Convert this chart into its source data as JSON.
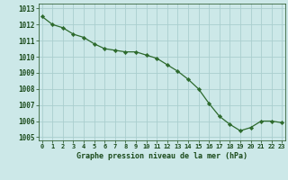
{
  "x": [
    0,
    1,
    2,
    3,
    4,
    5,
    6,
    7,
    8,
    9,
    10,
    11,
    12,
    13,
    14,
    15,
    16,
    17,
    18,
    19,
    20,
    21,
    22,
    23
  ],
  "y": [
    1012.5,
    1012.0,
    1011.8,
    1011.4,
    1011.2,
    1010.8,
    1010.5,
    1010.4,
    1010.3,
    1010.3,
    1010.1,
    1009.9,
    1009.5,
    1009.1,
    1008.6,
    1008.0,
    1007.1,
    1006.3,
    1005.8,
    1005.4,
    1005.6,
    1006.0,
    1006.0,
    1005.9
  ],
  "line_color": "#2d6a2d",
  "marker_color": "#2d6a2d",
  "bg_color": "#cce8e8",
  "grid_color": "#aacece",
  "xlabel": "Graphe pression niveau de la mer (hPa)",
  "xlabel_color": "#1a4a1a",
  "tick_label_color": "#1a4a1a",
  "ylim": [
    1004.8,
    1013.3
  ],
  "yticks": [
    1005,
    1006,
    1007,
    1008,
    1009,
    1010,
    1011,
    1012,
    1013
  ],
  "xticks": [
    0,
    1,
    2,
    3,
    4,
    5,
    6,
    7,
    8,
    9,
    10,
    11,
    12,
    13,
    14,
    15,
    16,
    17,
    18,
    19,
    20,
    21,
    22,
    23
  ],
  "xlim": [
    -0.3,
    23.3
  ]
}
